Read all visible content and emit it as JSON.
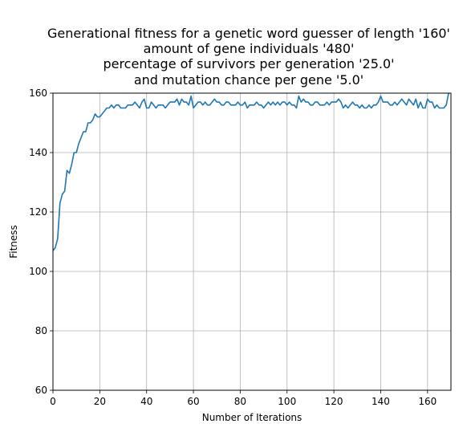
{
  "chart_data": {
    "type": "line",
    "title_lines": [
      "Generational fitness for a genetic word guesser of length '160'",
      "amount of gene individuals '480'",
      "percentage of survivors per generation '25.0'",
      "and mutation chance per gene '5.0'"
    ],
    "xlabel": "Number of Iterations",
    "ylabel": "Fitness",
    "xlim": [
      0,
      170
    ],
    "ylim": [
      60,
      160
    ],
    "xticks": [
      0,
      20,
      40,
      60,
      80,
      100,
      120,
      140,
      160
    ],
    "yticks": [
      60,
      80,
      100,
      120,
      140,
      160
    ],
    "grid": true,
    "series_color": "#1f77b4",
    "series": [
      {
        "values": [
          107,
          108,
          111,
          123,
          126,
          127,
          134,
          133,
          136,
          140,
          140,
          143,
          145,
          147,
          147,
          150,
          150,
          151,
          153,
          152,
          152,
          153,
          154,
          155,
          155,
          156,
          155,
          156,
          156,
          155,
          155,
          155,
          156,
          156,
          156,
          157,
          156,
          155,
          157,
          158,
          155,
          155,
          157,
          156,
          155,
          156,
          156,
          156,
          155,
          156,
          157,
          157,
          157,
          158,
          156,
          158,
          157,
          157,
          156,
          159,
          155,
          156,
          157,
          157,
          156,
          157,
          156,
          156,
          157,
          158,
          157,
          157,
          156,
          156,
          157,
          157,
          156,
          156,
          156,
          157,
          156,
          156,
          157,
          155,
          156,
          156,
          156,
          157,
          156,
          156,
          155,
          156,
          157,
          156,
          157,
          156,
          157,
          156,
          157,
          157,
          156,
          157,
          156,
          156,
          155,
          159,
          157,
          158,
          157,
          157,
          156,
          156,
          157,
          157,
          156,
          156,
          156,
          157,
          156,
          157,
          157,
          157,
          158,
          157,
          155,
          156,
          155,
          156,
          157,
          156,
          156,
          155,
          156,
          155,
          155,
          156,
          155,
          156,
          156,
          157,
          159,
          157,
          157,
          157,
          156,
          156,
          157,
          156,
          157,
          158,
          157,
          156,
          158,
          157,
          156,
          158,
          155,
          157,
          155,
          155,
          158,
          157,
          157,
          155,
          156,
          155,
          155,
          155,
          156,
          160
        ]
      }
    ]
  }
}
